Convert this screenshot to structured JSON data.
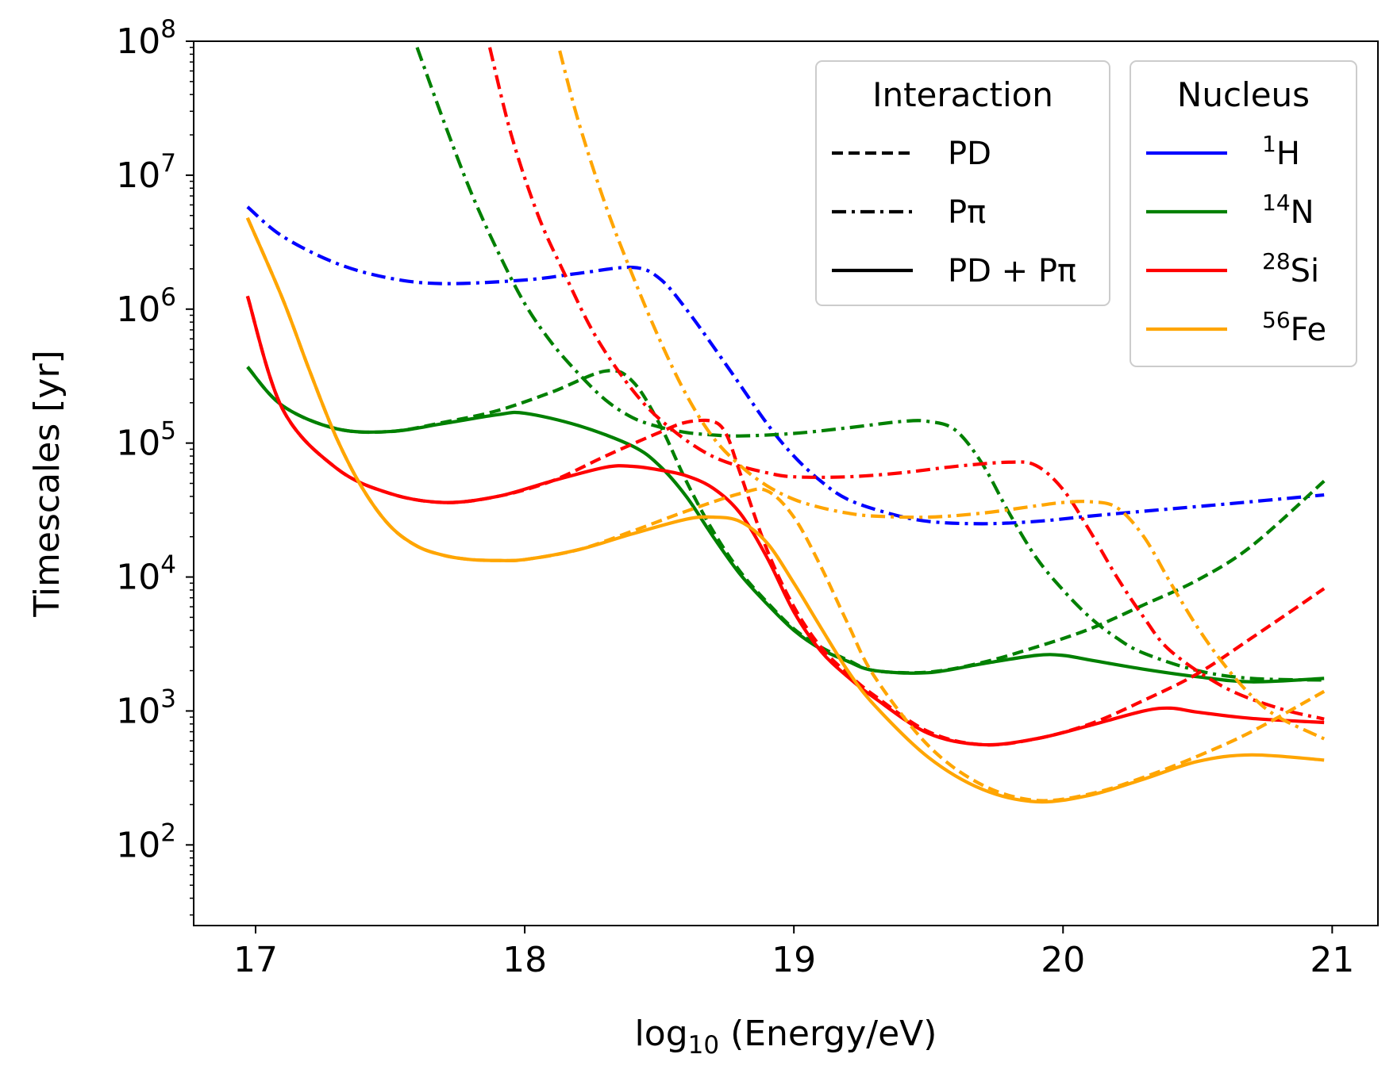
{
  "chart_data": {
    "type": "line",
    "xlabel": "log10 (Energy/eV)",
    "xlabel_parts": {
      "pre": "log",
      "sub": "10",
      "post": " (Energy/eV)"
    },
    "ylabel": "Timescales [yr]",
    "yscale": "log",
    "xlim": [
      16.77,
      21.17
    ],
    "ylim": [
      25,
      100000000
    ],
    "x_ticks": [
      17,
      18,
      19,
      20,
      21
    ],
    "x_tick_labels": [
      "17",
      "18",
      "19",
      "20",
      "21"
    ],
    "y_ticks": [
      100,
      1000,
      10000,
      100000,
      1000000,
      10000000,
      100000000
    ],
    "y_tick_labels": [
      {
        "base": "10",
        "exp": "2"
      },
      {
        "base": "10",
        "exp": "3"
      },
      {
        "base": "10",
        "exp": "4"
      },
      {
        "base": "10",
        "exp": "5"
      },
      {
        "base": "10",
        "exp": "6"
      },
      {
        "base": "10",
        "exp": "7"
      },
      {
        "base": "10",
        "exp": "8"
      }
    ],
    "grid": false,
    "legends": [
      {
        "title": "Interaction",
        "placement": "top-right",
        "entries": [
          {
            "label": "PD",
            "style": "dashed"
          },
          {
            "label": "Pπ",
            "style": "dashdot"
          },
          {
            "label": "PD + Pπ",
            "style": "solid"
          }
        ]
      },
      {
        "title": "Nucleus",
        "placement": "top-right",
        "entries": [
          {
            "sup": "1",
            "label": "H",
            "color": "#0000ff"
          },
          {
            "sup": "14",
            "label": "N",
            "color": "#008000"
          },
          {
            "sup": "28",
            "label": "Si",
            "color": "#ff0000"
          },
          {
            "sup": "56",
            "label": "Fe",
            "color": "#ffa500"
          }
        ]
      }
    ],
    "series": [
      {
        "nucleus": "1H",
        "interaction": "Pπ",
        "color": "#0000ff",
        "style": "dashdot",
        "x": [
          16.97,
          17.1,
          17.3,
          17.5,
          17.7,
          18.0,
          18.2,
          18.4,
          18.5,
          18.6,
          18.75,
          18.9,
          19.0,
          19.1,
          19.2,
          19.35,
          19.5,
          19.7,
          19.9,
          20.1,
          20.3,
          20.6,
          20.97
        ],
        "y": [
          5800000,
          3500000,
          2200000,
          1700000,
          1550000,
          1650000,
          1850000,
          2050000,
          1700000,
          1000000,
          380000,
          140000,
          80000,
          52000,
          38000,
          30000,
          26000,
          25000,
          26000,
          28500,
          31000,
          35000,
          41000
        ]
      },
      {
        "nucleus": "14N",
        "interaction": "Pπ",
        "color": "#008000",
        "style": "dashdot",
        "x": [
          17.6,
          17.7,
          17.8,
          17.9,
          18.0,
          18.1,
          18.2,
          18.3,
          18.4,
          18.5,
          18.6,
          18.7,
          18.8,
          19.0,
          19.2,
          19.4,
          19.5,
          19.6,
          19.7,
          19.8,
          19.9,
          20.0,
          20.1,
          20.2,
          20.3,
          20.5,
          20.7,
          20.97
        ],
        "y": [
          90000000,
          25000000,
          7500000,
          2700000,
          1100000,
          560000,
          330000,
          210000,
          155000,
          132000,
          120000,
          115000,
          113000,
          118000,
          130000,
          145000,
          145000,
          125000,
          70000,
          30000,
          14000,
          8000,
          5000,
          3500,
          2700,
          2000,
          1750,
          1700
        ]
      },
      {
        "nucleus": "14N",
        "interaction": "PD",
        "color": "#008000",
        "style": "dashed",
        "x": [
          16.97,
          17.1,
          17.3,
          17.5,
          17.7,
          17.9,
          18.1,
          18.3,
          18.4,
          18.5,
          18.6,
          18.7,
          18.8,
          18.9,
          19.0,
          19.1,
          19.2,
          19.3,
          19.5,
          19.7,
          19.9,
          20.1,
          20.3,
          20.5,
          20.7,
          20.97
        ],
        "y": [
          370000,
          190000,
          128000,
          122000,
          143000,
          175000,
          240000,
          345000,
          290000,
          140000,
          52000,
          22000,
          11000,
          6500,
          4100,
          3000,
          2400,
          2000,
          1950,
          2300,
          3000,
          4100,
          6200,
          9500,
          17000,
          52000
        ]
      },
      {
        "nucleus": "14N",
        "interaction": "PD + Pπ",
        "color": "#008000",
        "style": "solid",
        "x": [
          16.97,
          17.1,
          17.3,
          17.5,
          17.7,
          17.9,
          18.0,
          18.2,
          18.4,
          18.5,
          18.6,
          18.7,
          18.8,
          18.9,
          19.0,
          19.1,
          19.2,
          19.3,
          19.5,
          19.7,
          19.9,
          20.0,
          20.1,
          20.3,
          20.5,
          20.7,
          20.97
        ],
        "y": [
          370000,
          190000,
          128000,
          122000,
          140000,
          163000,
          167000,
          135000,
          95000,
          68000,
          40000,
          20000,
          10500,
          6300,
          4000,
          2900,
          2350,
          2000,
          1930,
          2250,
          2600,
          2600,
          2400,
          2050,
          1800,
          1650,
          1750
        ]
      },
      {
        "nucleus": "28Si",
        "interaction": "Pπ",
        "color": "#ff0000",
        "style": "dashdot",
        "x": [
          17.87,
          17.95,
          18.05,
          18.15,
          18.25,
          18.35,
          18.45,
          18.55,
          18.65,
          18.75,
          18.9,
          19.0,
          19.2,
          19.4,
          19.6,
          19.8,
          19.9,
          20.0,
          20.1,
          20.2,
          20.3,
          20.4,
          20.6,
          20.8,
          20.97
        ],
        "y": [
          90000000,
          20000000,
          5000000,
          1800000,
          700000,
          340000,
          190000,
          125000,
          90000,
          72000,
          60000,
          56000,
          56000,
          60000,
          67000,
          72000,
          68000,
          45000,
          22000,
          10000,
          5000,
          2800,
          1500,
          1050,
          870
        ]
      },
      {
        "nucleus": "28Si",
        "interaction": "PD",
        "color": "#ff0000",
        "style": "dashed",
        "x": [
          16.97,
          17.1,
          17.3,
          17.5,
          17.7,
          17.9,
          18.1,
          18.3,
          18.5,
          18.6,
          18.7,
          18.75,
          18.8,
          18.9,
          19.0,
          19.1,
          19.2,
          19.3,
          19.5,
          19.7,
          19.9,
          20.1,
          20.3,
          20.5,
          20.7,
          20.97
        ],
        "y": [
          1250000,
          180000,
          65000,
          42000,
          36000,
          40000,
          52000,
          80000,
          120000,
          143000,
          145000,
          115000,
          60000,
          16000,
          6000,
          3000,
          1900,
          1300,
          700,
          560,
          620,
          800,
          1200,
          1900,
          3500,
          8200
        ]
      },
      {
        "nucleus": "28Si",
        "interaction": "PD + Pπ",
        "color": "#ff0000",
        "style": "solid",
        "x": [
          16.97,
          17.1,
          17.3,
          17.5,
          17.7,
          17.9,
          18.1,
          18.3,
          18.4,
          18.5,
          18.6,
          18.7,
          18.8,
          18.9,
          19.0,
          19.1,
          19.2,
          19.3,
          19.5,
          19.7,
          19.9,
          20.1,
          20.3,
          20.4,
          20.5,
          20.7,
          20.97
        ],
        "y": [
          1250000,
          180000,
          65000,
          42000,
          36000,
          40000,
          52000,
          66000,
          67000,
          63000,
          57000,
          46000,
          30000,
          14000,
          5500,
          2800,
          1800,
          1250,
          680,
          560,
          620,
          780,
          1000,
          1050,
          980,
          880,
          820
        ]
      },
      {
        "nucleus": "56Fe",
        "interaction": "Pπ",
        "color": "#ffa500",
        "style": "dashdot",
        "x": [
          18.13,
          18.2,
          18.3,
          18.4,
          18.5,
          18.6,
          18.7,
          18.8,
          18.9,
          19.0,
          19.1,
          19.2,
          19.3,
          19.5,
          19.7,
          19.9,
          20.0,
          20.1,
          20.2,
          20.3,
          20.4,
          20.5,
          20.6,
          20.7,
          20.8,
          20.97
        ],
        "y": [
          85000000,
          25000000,
          6000000,
          1800000,
          600000,
          230000,
          110000,
          68000,
          48000,
          38000,
          33000,
          30000,
          28500,
          28000,
          30000,
          34000,
          36000,
          36500,
          33000,
          20000,
          9000,
          4200,
          2200,
          1300,
          900,
          620
        ]
      },
      {
        "nucleus": "56Fe",
        "interaction": "PD",
        "color": "#ffa500",
        "style": "dashed",
        "x": [
          16.97,
          17.1,
          17.2,
          17.3,
          17.4,
          17.5,
          17.6,
          17.7,
          17.8,
          17.9,
          18.0,
          18.2,
          18.4,
          18.6,
          18.8,
          18.9,
          19.0,
          19.1,
          19.2,
          19.3,
          19.5,
          19.7,
          19.9,
          20.1,
          20.3,
          20.5,
          20.7,
          20.97
        ],
        "y": [
          4800000,
          1200000,
          350000,
          110000,
          45000,
          24000,
          17000,
          14500,
          13500,
          13300,
          13500,
          16000,
          22000,
          31000,
          42000,
          44000,
          28000,
          12000,
          4500,
          1800,
          550,
          280,
          215,
          240,
          320,
          460,
          700,
          1400
        ]
      },
      {
        "nucleus": "56Fe",
        "interaction": "PD + Pπ",
        "color": "#ffa500",
        "style": "solid",
        "x": [
          16.97,
          17.1,
          17.2,
          17.3,
          17.4,
          17.5,
          17.6,
          17.7,
          17.8,
          17.9,
          18.0,
          18.2,
          18.4,
          18.6,
          18.7,
          18.8,
          18.9,
          19.0,
          19.1,
          19.2,
          19.3,
          19.5,
          19.7,
          19.9,
          20.1,
          20.3,
          20.5,
          20.7,
          20.97
        ],
        "y": [
          4800000,
          1200000,
          350000,
          110000,
          45000,
          24000,
          17000,
          14500,
          13500,
          13300,
          13500,
          16000,
          21000,
          27000,
          28000,
          26000,
          18000,
          9000,
          4200,
          2000,
          1100,
          450,
          260,
          210,
          235,
          310,
          420,
          470,
          430
        ]
      }
    ]
  }
}
